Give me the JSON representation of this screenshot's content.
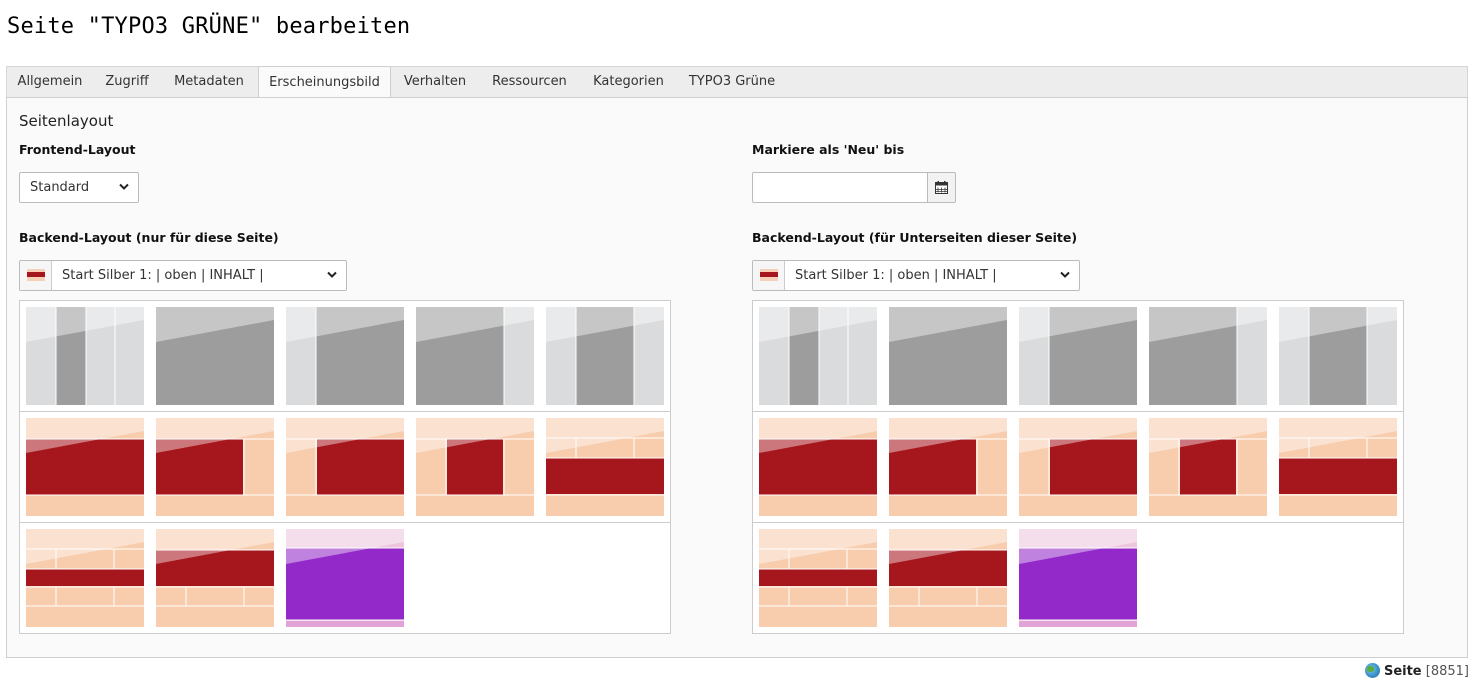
{
  "header": {
    "title": "Seite \"TYPO3 GRÜNE\" bearbeiten"
  },
  "tabs": [
    {
      "label": "Allgemein",
      "active": false
    },
    {
      "label": "Zugriff",
      "active": false
    },
    {
      "label": "Metadaten",
      "active": false
    },
    {
      "label": "Erscheinungsbild",
      "active": true
    },
    {
      "label": "Verhalten",
      "active": false
    },
    {
      "label": "Ressourcen",
      "active": false
    },
    {
      "label": "Kategorien",
      "active": false
    },
    {
      "label": "TYPO3 Grüne",
      "active": false
    }
  ],
  "panel": {
    "section_title": "Seitenlayout",
    "frontend_layout": {
      "label": "Frontend-Layout",
      "value": "Standard"
    },
    "new_until": {
      "label": "Markiere als 'Neu' bis",
      "value": ""
    },
    "backend_layout": {
      "label": "Backend-Layout (nur für diese Seite)",
      "value": "Start Silber 1: | oben | INHALT |"
    },
    "backend_layout_sub": {
      "label": "Backend-Layout (für Unterseiten dieser Seite)",
      "value": "Start Silber 1: | oben | INHALT |"
    }
  },
  "layout_thumbnails": {
    "rows": [
      [
        "grey-4col",
        "grey-full",
        "grey-left-sidebar",
        "grey-right-sidebar",
        "grey-3col"
      ],
      [
        "red-full",
        "red-right-sidebar",
        "red-left-sidebar",
        "red-3col",
        "red-top-boxes"
      ],
      [
        "red-boxes-top-bottom",
        "red-wide-boxes-bottom",
        "purple-full"
      ]
    ]
  },
  "colors": {
    "grey_dark": "#9d9d9d",
    "grey_light": "#dadbdc",
    "red": "#a5161d",
    "peach": "#f8cdae",
    "purple": "#9329c8"
  },
  "footer": {
    "type_label": "Seite",
    "id_text": "[8851]",
    "icon": "globe-icon"
  }
}
